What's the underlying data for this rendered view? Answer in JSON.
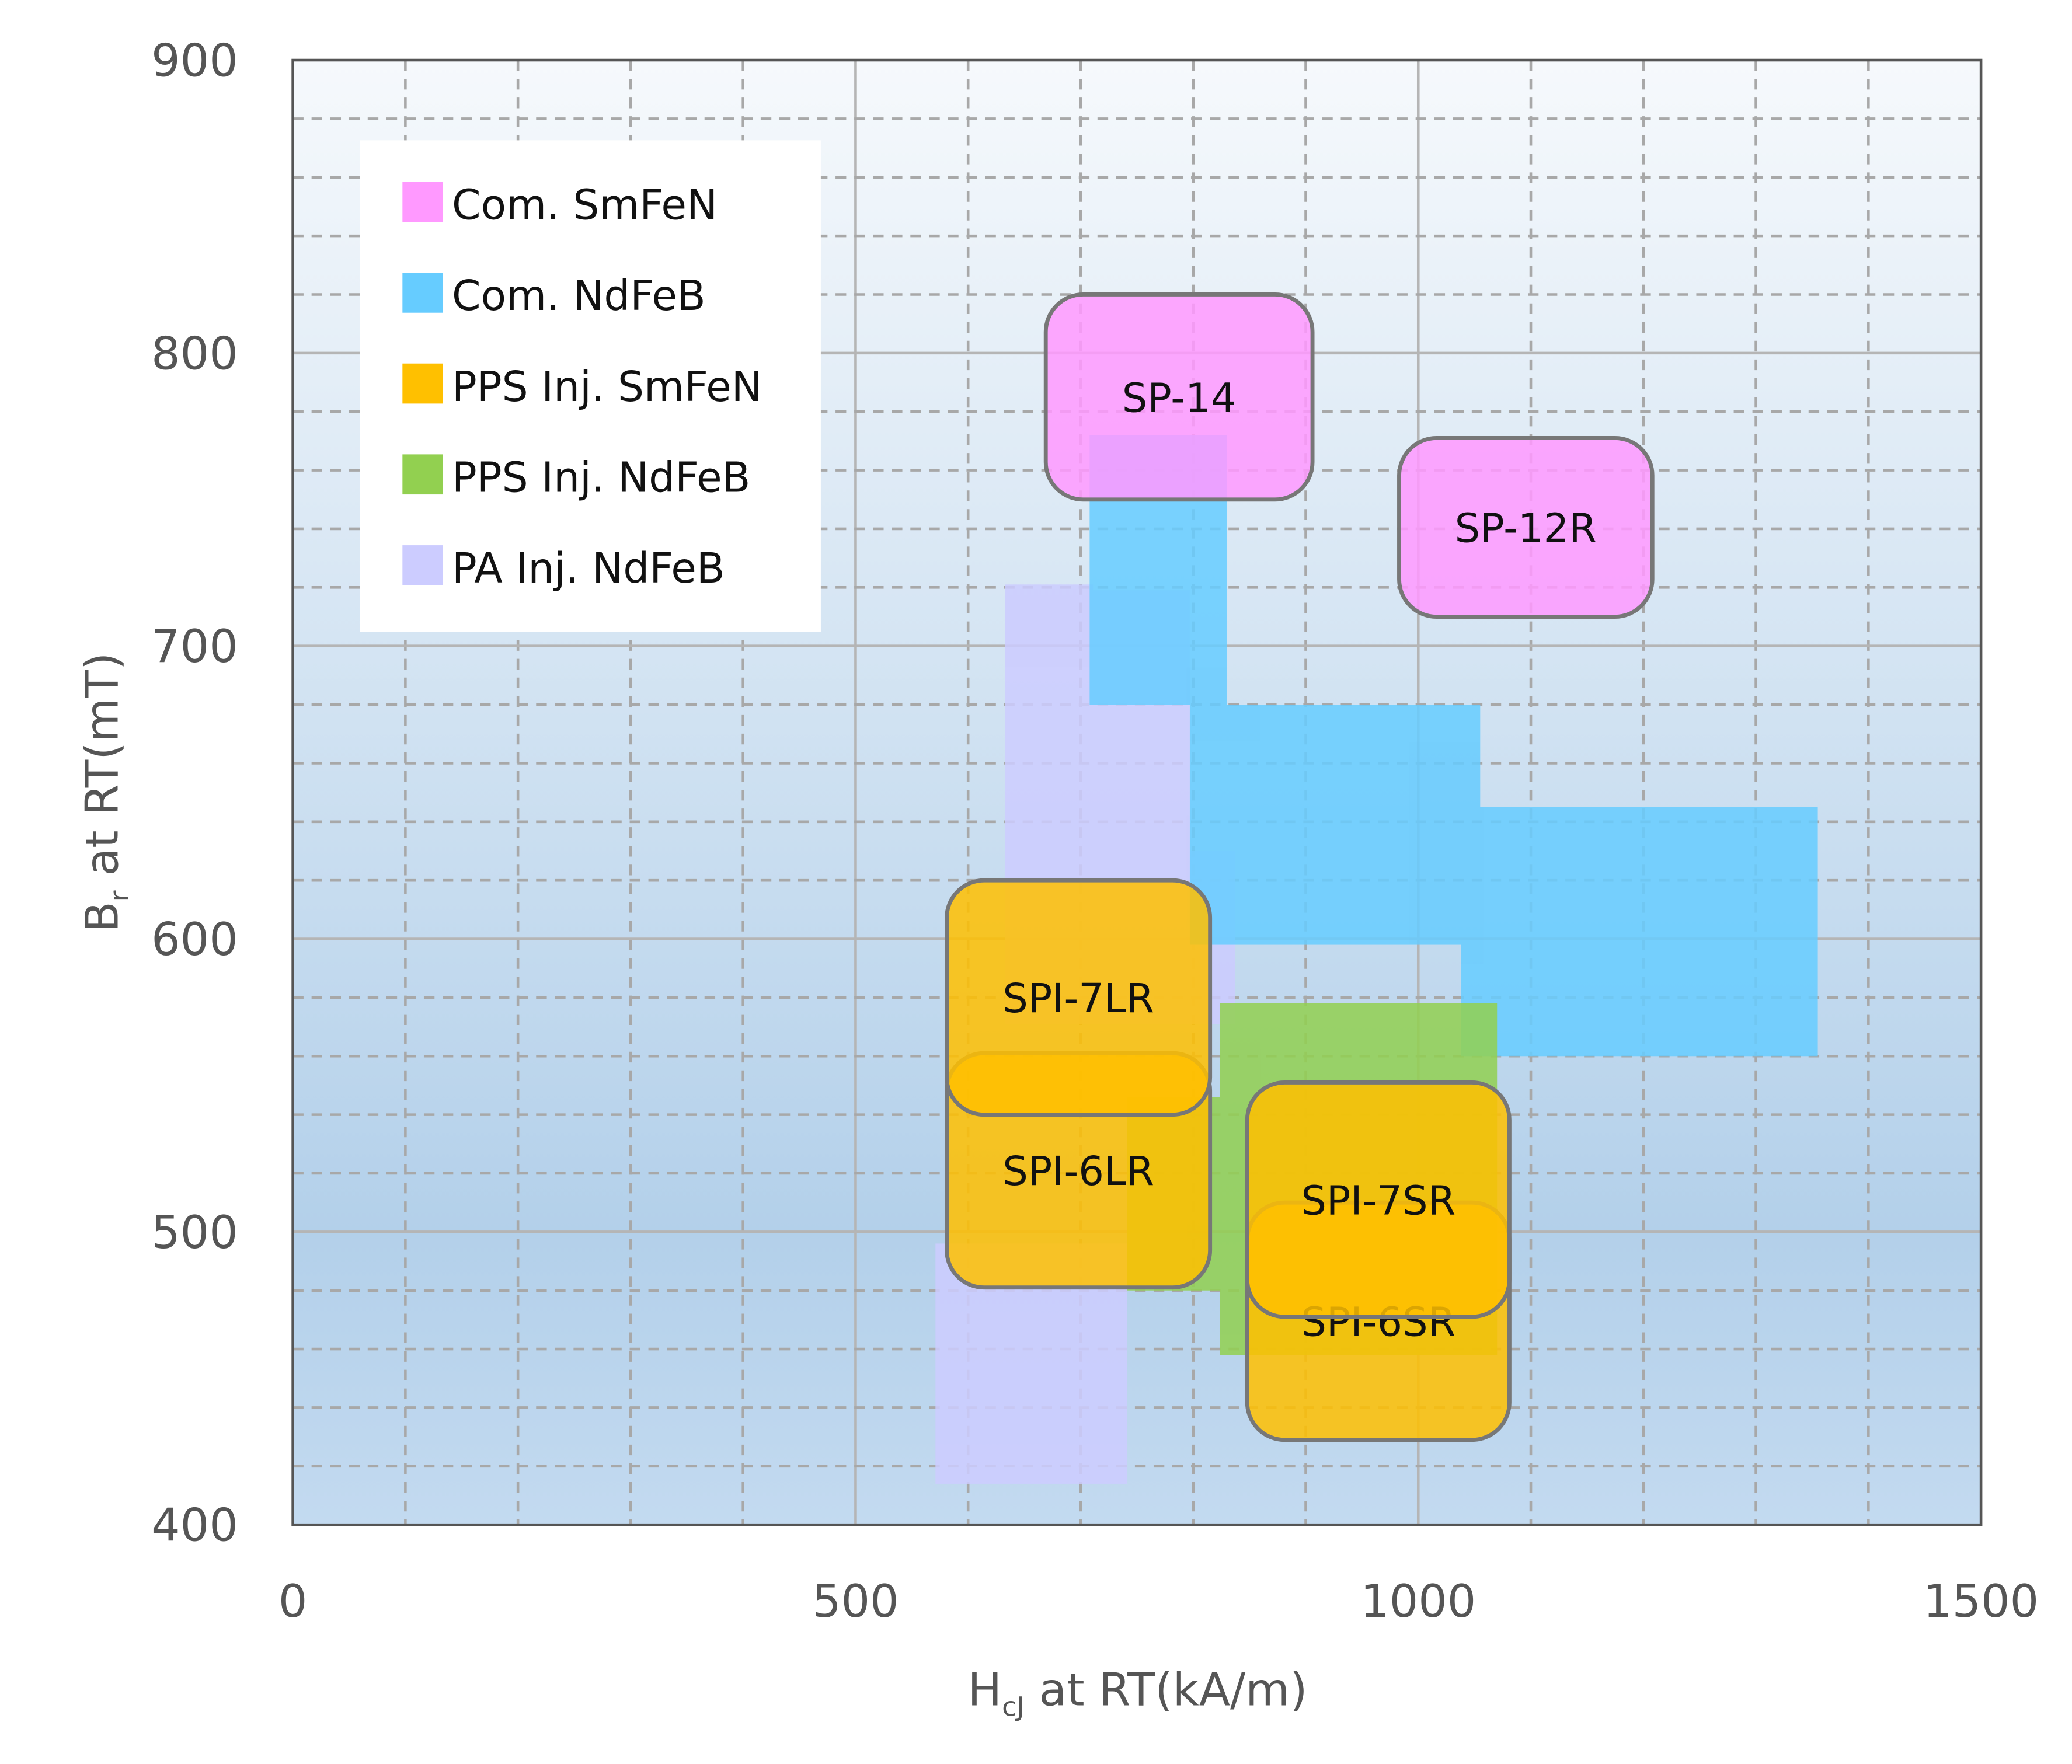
{
  "chart_data": {
    "type": "area",
    "title": "",
    "xlabel": {
      "main": "H",
      "sub": "cJ",
      "rest": " at RT(kA/m)"
    },
    "ylabel": {
      "main": "B",
      "sub": "r",
      "rest": " at RT(mT)"
    },
    "xlim": [
      0,
      1500
    ],
    "ylim": [
      400,
      900
    ],
    "xticks": [
      0,
      500,
      1000,
      1500
    ],
    "yticks": [
      400,
      500,
      600,
      700,
      800,
      900
    ],
    "grid": true,
    "legend_position": "top-left",
    "legend": [
      {
        "label": "Com. SmFeN",
        "color": "#ff99ff"
      },
      {
        "label": "Com. NdFeB",
        "color": "#66ccff"
      },
      {
        "label": "PPS Inj. SmFeN",
        "color": "#ffc000"
      },
      {
        "label": "PPS Inj. NdFeB",
        "color": "#92d050"
      },
      {
        "label": "PA Inj. NdFeB",
        "color": "#ccccff"
      }
    ],
    "regions": [
      {
        "series": "PA Inj. NdFeB",
        "color": "#ccccff",
        "rects": [
          {
            "h": [
              633,
              711
            ],
            "b": [
              709,
              721
            ]
          },
          {
            "h": [
              633,
              797
            ],
            "b": [
              571,
              719
            ]
          },
          {
            "h": [
              797,
              837
            ],
            "b": [
              571,
              630
            ]
          },
          {
            "h": [
              571,
              741
            ],
            "b": [
              414,
              496
            ]
          }
        ]
      },
      {
        "series": "Com. NdFeB",
        "color": "#66ccff",
        "rects": [
          {
            "h": [
              708,
              830
            ],
            "b": [
              680,
              772
            ]
          },
          {
            "h": [
              797,
              1055
            ],
            "b": [
              598,
              680
            ]
          },
          {
            "h": [
              1038,
              1355
            ],
            "b": [
              560,
              645
            ]
          }
        ]
      },
      {
        "series": "PPS Inj. NdFeB",
        "color": "#92d050",
        "rects": [
          {
            "h": [
              824,
              1070
            ],
            "b": [
              458,
              578
            ]
          },
          {
            "h": [
              741,
              824
            ],
            "b": [
              480,
              546
            ]
          }
        ]
      }
    ],
    "grades": [
      {
        "label": "SP-14",
        "series": "Com. SmFeN",
        "color": "#ff99ff",
        "h": [
          669,
          906
        ],
        "b": [
          750,
          820
        ]
      },
      {
        "label": "SP-12R",
        "series": "Com. SmFeN",
        "color": "#ff99ff",
        "h": [
          983,
          1208
        ],
        "b": [
          710,
          771
        ]
      },
      {
        "label": "SPI-6LR",
        "series": "PPS Inj. SmFeN",
        "color": "#ffc000",
        "h": [
          581,
          815
        ],
        "b": [
          481,
          561
        ]
      },
      {
        "label": "SPI-7LR",
        "series": "PPS Inj. SmFeN",
        "color": "#ffc000",
        "h": [
          581,
          815
        ],
        "b": [
          540,
          620
        ]
      },
      {
        "label": "SPI-6SR",
        "series": "PPS Inj. SmFeN",
        "color": "#ffc000",
        "h": [
          848,
          1081
        ],
        "b": [
          429,
          510
        ]
      },
      {
        "label": "SPI-7SR",
        "series": "PPS Inj. SmFeN",
        "color": "#ffc000",
        "h": [
          848,
          1081
        ],
        "b": [
          471,
          551
        ]
      }
    ]
  }
}
